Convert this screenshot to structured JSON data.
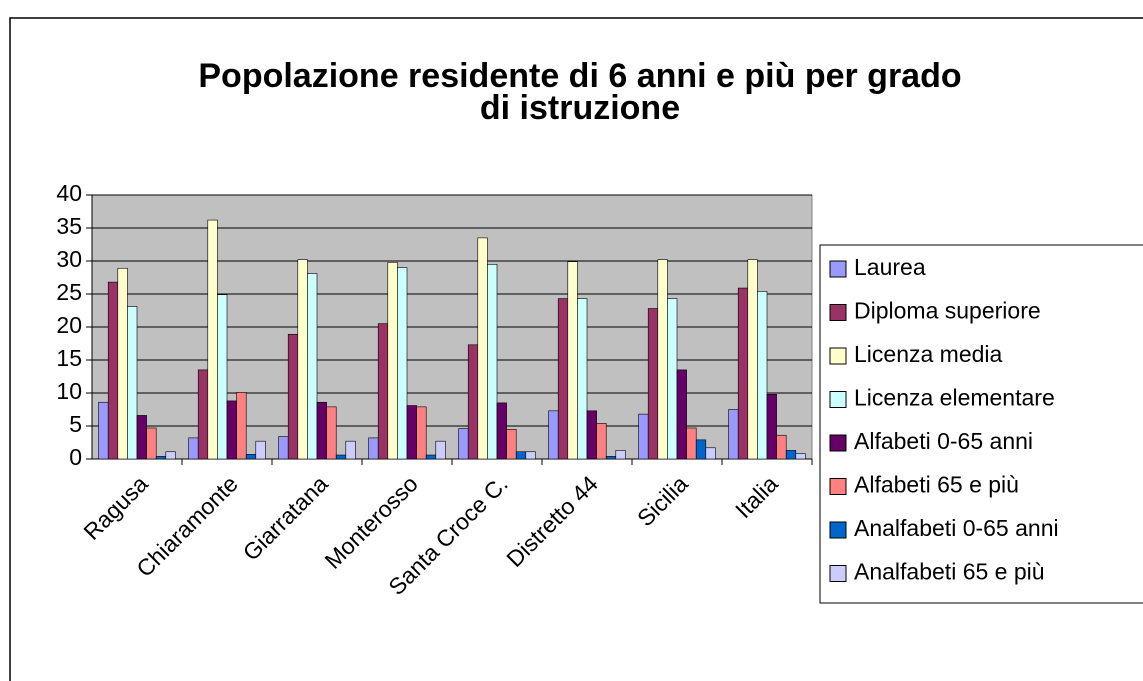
{
  "chart_data": {
    "type": "bar",
    "title": [
      "Popolazione residente di 6 anni e più per grado",
      "di istruzione"
    ],
    "categories": [
      "Ragusa",
      "Chiaramonte",
      "Giarratana",
      "Monterosso",
      "Santa Croce C.",
      "Distretto 44",
      "Sicilia",
      "Italia"
    ],
    "series": [
      {
        "name": "Laurea",
        "color": "#9999ff",
        "values": [
          8.6,
          3.2,
          3.4,
          3.2,
          4.6,
          7.3,
          6.8,
          7.5
        ]
      },
      {
        "name": "Diploma superiore",
        "color": "#993366",
        "values": [
          26.8,
          13.5,
          18.9,
          20.5,
          17.3,
          24.3,
          22.8,
          25.9
        ]
      },
      {
        "name": "Licenza media",
        "color": "#ffffcc",
        "values": [
          28.9,
          36.2,
          30.2,
          29.8,
          33.5,
          29.9,
          30.2,
          30.2
        ]
      },
      {
        "name": "Licenza elementare",
        "color": "#ccffff",
        "values": [
          23.1,
          24.9,
          28.1,
          29.0,
          29.5,
          24.3,
          24.3,
          25.4
        ]
      },
      {
        "name": "Alfabeti 0-65 anni",
        "color": "#660066",
        "values": [
          6.6,
          8.8,
          8.6,
          8.1,
          8.5,
          7.3,
          13.5,
          9.8
        ]
      },
      {
        "name": "Alfabeti 65 e più",
        "color": "#ff8080",
        "values": [
          4.7,
          10.1,
          7.9,
          7.9,
          4.5,
          5.4,
          4.7,
          3.6
        ]
      },
      {
        "name": "Analfabeti 0-65 anni",
        "color": "#0066cc",
        "values": [
          0.4,
          0.7,
          0.6,
          0.6,
          1.1,
          0.4,
          2.9,
          1.3
        ]
      },
      {
        "name": "Analfabeti 65 e più",
        "color": "#ccccff",
        "values": [
          1.1,
          2.7,
          2.7,
          2.7,
          1.1,
          1.3,
          1.7,
          0.8
        ]
      }
    ],
    "ylim": [
      0,
      40
    ],
    "yticks": [
      0,
      5,
      10,
      15,
      20,
      25,
      30,
      35,
      40
    ],
    "grid": true,
    "legend": "right"
  }
}
